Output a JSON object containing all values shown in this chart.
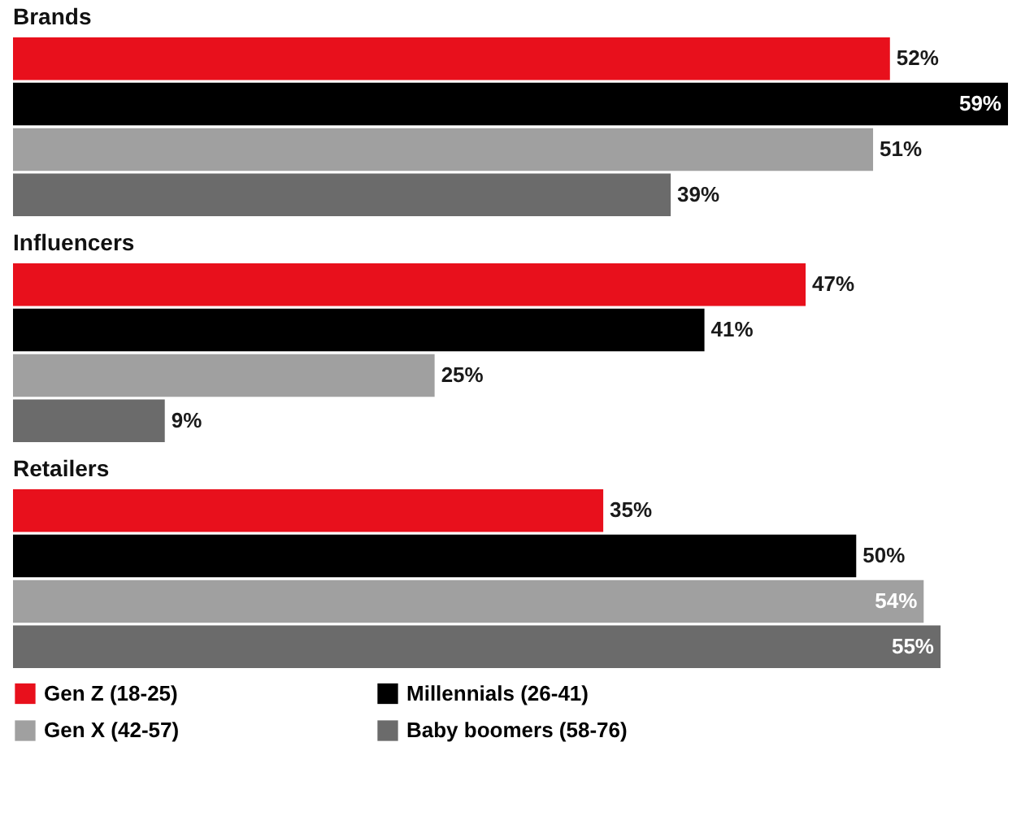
{
  "chart_data": {
    "type": "bar",
    "orientation": "horizontal",
    "categories": [
      "Brands",
      "Influencers",
      "Retailers"
    ],
    "series": [
      {
        "name": "Gen Z (18-25)",
        "color": "#e8101c",
        "values": [
          52,
          47,
          35
        ],
        "value_labels": [
          "52%",
          "47%",
          "35%"
        ]
      },
      {
        "name": "Millennials (26-41)",
        "color": "#000000",
        "values": [
          59,
          41,
          50
        ],
        "value_labels": [
          "59%",
          "41%",
          "50%"
        ]
      },
      {
        "name": "Gen X (42-57)",
        "color": "#a0a0a0",
        "values": [
          51,
          25,
          54
        ],
        "value_labels": [
          "51%",
          "25%",
          "54%"
        ]
      },
      {
        "name": "Baby boomers (58-76)",
        "color": "#6b6b6b",
        "values": [
          39,
          9,
          55
        ],
        "value_labels": [
          "39%",
          "9%",
          "55%"
        ]
      }
    ],
    "legend": "bottom"
  }
}
